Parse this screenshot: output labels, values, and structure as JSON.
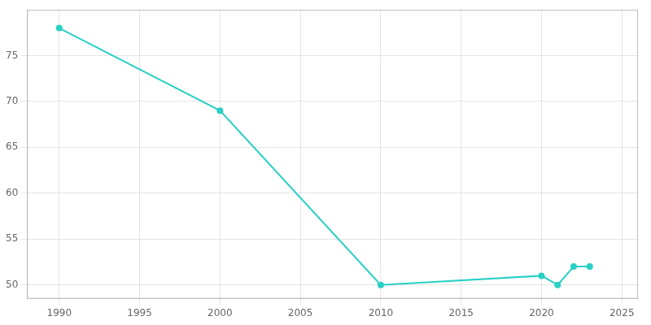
{
  "chart_data": {
    "type": "line",
    "x": [
      1990,
      2000,
      2010,
      2020,
      2021,
      2022,
      2023
    ],
    "values": [
      78,
      69,
      50,
      51,
      50,
      52,
      52
    ],
    "color": "#29d0c5",
    "marker": "o",
    "xlim": [
      1988,
      2026
    ],
    "xticks": [
      1990,
      1995,
      2000,
      2005,
      2010,
      2015,
      2020,
      2025
    ],
    "ylim": [
      48.5,
      80
    ],
    "yticks": [
      50,
      55,
      60,
      65,
      70,
      75
    ],
    "grid": true
  }
}
